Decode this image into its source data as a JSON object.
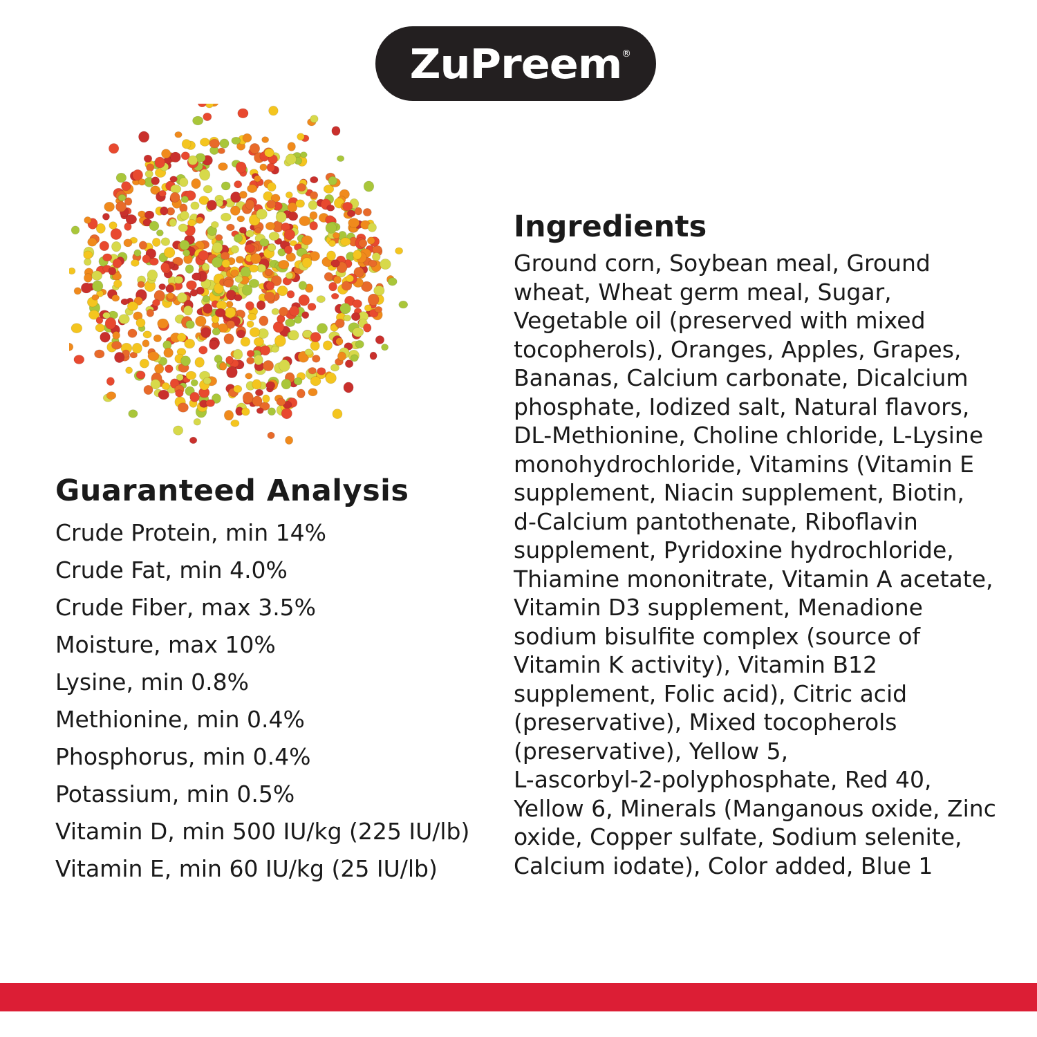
{
  "brand": {
    "name": "ZuPreem",
    "registered": "®"
  },
  "image": {
    "subject": "pellets",
    "pellet_colors": [
      "#e8492f",
      "#f08a1c",
      "#f4c51f",
      "#a9c63a",
      "#d7d94a",
      "#e86a2a",
      "#c9302c"
    ]
  },
  "guaranteed_analysis": {
    "title": "Guaranteed Analysis",
    "items": [
      "Crude Protein, min 14%",
      "Crude Fat, min 4.0%",
      "Crude Fiber, max 3.5%",
      "Moisture, max 10%",
      "Lysine, min 0.8%",
      "Methionine, min 0.4%",
      "Phosphorus, min 0.4%",
      "Potassium, min 0.5%",
      "Vitamin D, min 500 IU/kg (225 IU/lb)",
      "Vitamin E, min 60 IU/kg (25 IU/lb)"
    ]
  },
  "ingredients": {
    "title": "Ingredients",
    "lines": [
      "Ground corn, Soybean meal, Ground",
      "wheat, Wheat germ meal, Sugar,",
      "Vegetable oil (preserved with mixed",
      "tocopherols), Oranges, Apples, Grapes,",
      "Bananas, Calcium carbonate, Dicalcium",
      "phosphate, Iodized salt, Natural flavors,",
      "DL-Methionine, Choline chloride, L-Lysine",
      "monohydrochloride, Vitamins (Vitamin E",
      "supplement, Niacin supplement, Biotin,",
      "d-Calcium pantothenate, Riboflavin",
      "supplement, Pyridoxine hydrochloride,",
      "Thiamine mononitrate, Vitamin A acetate,",
      "Vitamin D3 supplement, Menadione",
      "sodium bisulfite complex (source of",
      "Vitamin K activity), Vitamin B12",
      "supplement, Folic acid), Citric acid",
      "(preservative), Mixed tocopherols",
      "(preservative), Yellow 5,",
      "L-ascorbyl-2-polyphosphate, Red 40,",
      "Yellow 6, Minerals (Manganous oxide, Zinc",
      "oxide, Copper sulfate, Sodium selenite,",
      "Calcium iodate), Color added, Blue 1"
    ]
  },
  "colors": {
    "accent_bar": "#dc1e35",
    "logo_bg": "#231f20"
  }
}
